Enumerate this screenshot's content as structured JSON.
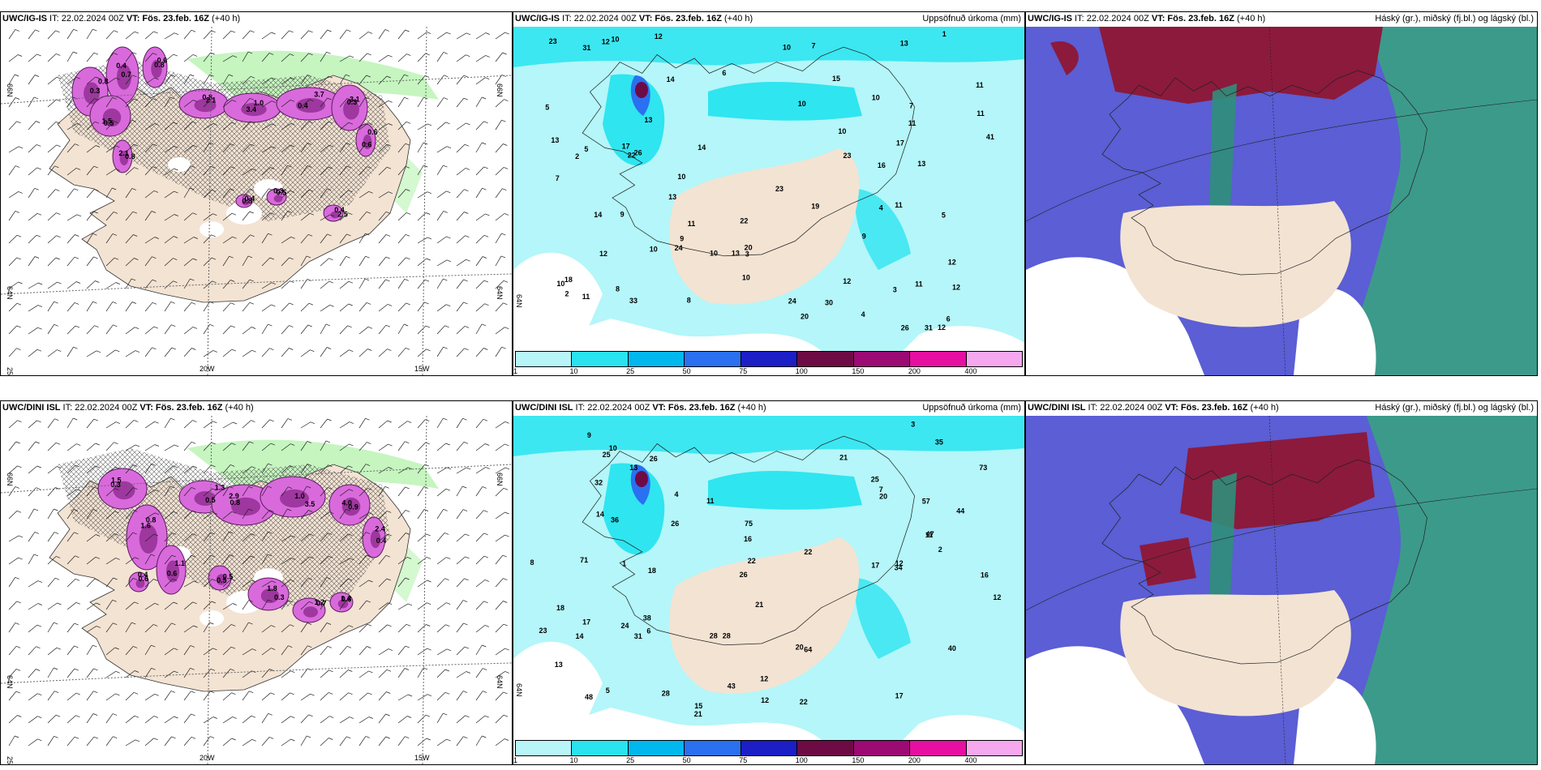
{
  "rows": [
    {
      "model": "UWC/IG-IS",
      "it": "22.02.2024 00Z",
      "vt": "Fös. 23.feb. 16Z",
      "lead": "(+40 h)",
      "precip_values": [
        "22",
        "22",
        "12",
        "11",
        "12",
        "14",
        "13",
        "13",
        "24",
        "16",
        "13",
        "10",
        "23",
        "26",
        "10",
        "12",
        "23",
        "41",
        "11",
        "14",
        "31",
        "26",
        "30",
        "10",
        "11",
        "23",
        "24",
        "18",
        "7",
        "10",
        "9",
        "10",
        "11",
        "12",
        "10",
        "13",
        "5",
        "10",
        "9",
        "8",
        "7",
        "6",
        "5",
        "4",
        "3",
        "2",
        "20",
        "13",
        "12",
        "15",
        "20",
        "17",
        "19",
        "13",
        "11",
        "10",
        "33",
        "31",
        "12",
        "8",
        "7",
        "6",
        "5",
        "4",
        "3",
        "2",
        "1",
        "10",
        "9",
        "11",
        "14",
        "17",
        "10",
        "11",
        "12"
      ],
      "ice_values": [
        "0.3",
        "0.4",
        "0.8",
        "1.5",
        "2.1",
        "3.4",
        "3.7",
        "3.1",
        "0.6",
        "0.4",
        "0.3",
        "2.5",
        "2.1",
        "0.8",
        "0.7",
        "0.6",
        "0.5",
        "0.8",
        "1.0",
        "0.4",
        "0.3",
        "0.6",
        "0.8",
        "0.5",
        "0.4",
        "0.8"
      ]
    },
    {
      "model": "UWC/DINI ISL",
      "it": "22.02.2024 00Z",
      "vt": "Fös. 23.feb. 16Z",
      "lead": "(+40 h)",
      "precip_values": [
        "17",
        "17",
        "12",
        "21",
        "12",
        "11",
        "26",
        "24",
        "28",
        "16",
        "31",
        "13",
        "15",
        "44",
        "48",
        "73",
        "64",
        "75",
        "71",
        "22",
        "20",
        "32",
        "38",
        "34",
        "28",
        "40",
        "43",
        "36",
        "35",
        "57",
        "47",
        "12",
        "21",
        "25",
        "17",
        "26",
        "25",
        "18",
        "23",
        "22",
        "21",
        "11",
        "12",
        "18",
        "14",
        "13",
        "10",
        "9",
        "8",
        "7",
        "6",
        "5",
        "4",
        "3",
        "2",
        "1",
        "14",
        "16",
        "20",
        "22",
        "26",
        "28"
      ],
      "ice_values": [
        "0.3",
        "0.8",
        "1.1",
        "1.3",
        "2.9",
        "3.5",
        "4.0",
        "2.4",
        "1.8",
        "1.2",
        "0.8",
        "0.5",
        "0.4",
        "1.5",
        "1.6",
        "0.6",
        "0.5",
        "0.8",
        "1.0",
        "0.9",
        "0.4",
        "0.3",
        "0.7",
        "1.4",
        "0.5",
        "0.6"
      ]
    }
  ],
  "precip_title": "Uppsöfnuð úrkoma (mm)",
  "cloud_title": "Háský (gr.), miðský (fj.bl.) og lágský (bl.)",
  "legend": {
    "ticks": [
      "1",
      "10",
      "25",
      "50",
      "75",
      "100",
      "150",
      "200",
      "400"
    ],
    "colors": [
      "#b8f5f9",
      "#29e3ef",
      "#00b8ee",
      "#2a70f0",
      "#1c1ec6",
      "#6e0b45",
      "#9c0a74",
      "#e60fa1",
      "#f5a8ee"
    ]
  },
  "lon_labels": [
    "20W",
    "15W"
  ],
  "lat_labels": [
    "66N",
    "64N",
    "25W"
  ],
  "colors": {
    "land": "#f3e3d3",
    "ocean_precip": "#b4f6f9",
    "cyan": "#2fe5f0",
    "ice_pink": "#d96adc",
    "cloud_blue": "#5b5ed4",
    "cloud_red": "#8c1a3c",
    "cloud_teal": "#3c9a8a",
    "snow_green": "#b8f3b0"
  }
}
